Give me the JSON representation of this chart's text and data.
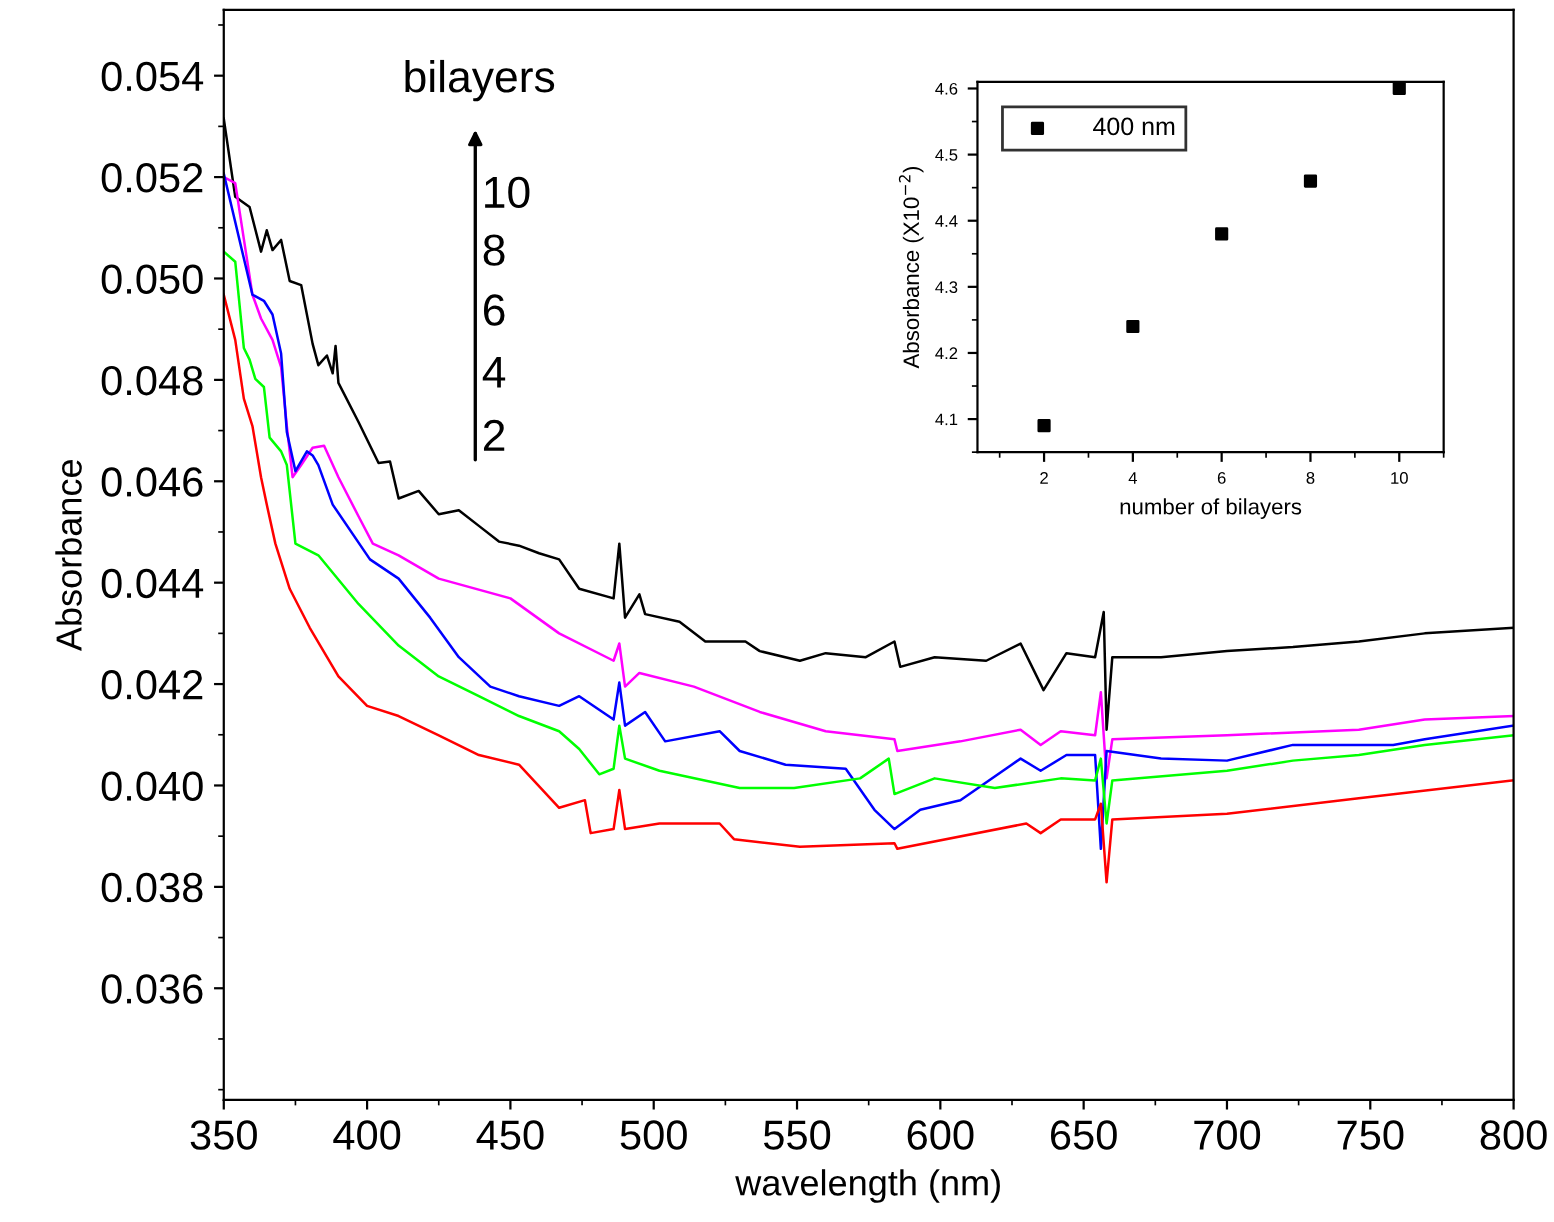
{
  "chart_data": [
    {
      "type": "line",
      "xlabel": "wavelength (nm)",
      "ylabel": "Absorbance",
      "xlim": [
        350,
        800
      ],
      "xticks": [
        350,
        400,
        450,
        500,
        550,
        600,
        650,
        700,
        750,
        800
      ],
      "ylim": [
        0.0338,
        0.0553
      ],
      "yticks": [
        {
          "value": 0.036,
          "label": "0.036"
        },
        {
          "value": 0.038,
          "label": "0.038"
        },
        {
          "value": 0.04,
          "label": "0.040"
        },
        {
          "value": 0.042,
          "label": "0.042"
        },
        {
          "value": 0.044,
          "label": "0.044"
        },
        {
          "value": 0.046,
          "label": "0.046"
        },
        {
          "value": 0.048,
          "label": "0.048"
        },
        {
          "value": 0.05,
          "label": "0.050"
        },
        {
          "value": 0.052,
          "label": "0.052"
        },
        {
          "value": 0.054,
          "label": "0.054"
        }
      ],
      "grid": false,
      "legend": false,
      "annotations": [
        "bilayers",
        "10",
        "8",
        "6",
        "4",
        "2"
      ],
      "series": [
        {
          "color": "#000000",
          "x": [
            350,
            354,
            359,
            363,
            365,
            367,
            370,
            373,
            377,
            381,
            383,
            386,
            388,
            389,
            390,
            397,
            404,
            408,
            411,
            418,
            425,
            432,
            439,
            446,
            453,
            460,
            467,
            474,
            486,
            488,
            490,
            495,
            497,
            509,
            518,
            532,
            537,
            551,
            560,
            574,
            584,
            586,
            598,
            616,
            628,
            636,
            644,
            654,
            657,
            658,
            660,
            677,
            700,
            723,
            746,
            769,
            800
          ],
          "values": [
            0.05315,
            0.05161,
            0.05141,
            0.05053,
            0.05095,
            0.05056,
            0.05076,
            0.04995,
            0.04987,
            0.04871,
            0.04829,
            0.04848,
            0.04813,
            0.04867,
            0.04794,
            0.04717,
            0.04636,
            0.04639,
            0.04566,
            0.04581,
            0.04535,
            0.04543,
            0.04512,
            0.04481,
            0.04473,
            0.04458,
            0.04446,
            0.04388,
            0.04369,
            0.04477,
            0.04331,
            0.04377,
            0.04338,
            0.04323,
            0.04284,
            0.04284,
            0.04265,
            0.04246,
            0.04261,
            0.04253,
            0.04284,
            0.04234,
            0.04253,
            0.04246,
            0.0428,
            0.04188,
            0.04261,
            0.04253,
            0.04342,
            0.0411,
            0.04253,
            0.04253,
            0.04265,
            0.04273,
            0.04284,
            0.043,
            0.04311
          ]
        },
        {
          "color": "#ff00ff",
          "x": [
            350,
            354,
            360,
            363,
            367,
            370,
            372,
            374,
            377,
            381,
            385,
            390,
            397,
            402,
            411,
            425,
            450,
            467,
            486,
            488,
            490,
            495,
            514,
            537,
            560,
            584,
            585,
            607,
            628,
            635,
            642,
            654,
            656,
            658,
            660,
            700,
            746,
            769,
            800
          ],
          "values": [
            0.052,
            0.05188,
            0.04968,
            0.04921,
            0.04879,
            0.04825,
            0.04709,
            0.04608,
            0.04632,
            0.04666,
            0.0467,
            0.04608,
            0.04531,
            0.04477,
            0.04454,
            0.04408,
            0.04369,
            0.043,
            0.04246,
            0.0428,
            0.04195,
            0.04222,
            0.04195,
            0.04145,
            0.04107,
            0.04091,
            0.04068,
            0.04087,
            0.0411,
            0.0408,
            0.04107,
            0.04099,
            0.04184,
            0.04014,
            0.04091,
            0.04099,
            0.0411,
            0.0413,
            0.04137
          ]
        },
        {
          "color": "#0000ff",
          "x": [
            350,
            360,
            364,
            367,
            370,
            372,
            375,
            379,
            381,
            383,
            388,
            401,
            411,
            422,
            432,
            443,
            453,
            467,
            474,
            486,
            488,
            490,
            497,
            504,
            523,
            530,
            546,
            567,
            577,
            584,
            593,
            607,
            628,
            635,
            644,
            654,
            656,
            658,
            677,
            700,
            723,
            758,
            769,
            800
          ],
          "values": [
            0.05207,
            0.04968,
            0.04956,
            0.04929,
            0.04852,
            0.04697,
            0.0462,
            0.04659,
            0.04651,
            0.04632,
            0.04554,
            0.04446,
            0.04408,
            0.04331,
            0.04253,
            0.04195,
            0.04176,
            0.04157,
            0.04176,
            0.0413,
            0.04203,
            0.04118,
            0.04145,
            0.04087,
            0.04107,
            0.04068,
            0.04041,
            0.04033,
            0.03952,
            0.03914,
            0.03952,
            0.03971,
            0.04053,
            0.04029,
            0.0406,
            0.0406,
            0.03875,
            0.04068,
            0.04053,
            0.04049,
            0.0408,
            0.0408,
            0.04091,
            0.04118
          ]
        },
        {
          "color": "#00ff00",
          "x": [
            350,
            354,
            357,
            359,
            361,
            364,
            366,
            370,
            372,
            375,
            383,
            397,
            411,
            425,
            439,
            453,
            467,
            474,
            481,
            486,
            488,
            490,
            502,
            530,
            549,
            572,
            582,
            584,
            598,
            619,
            642,
            654,
            656,
            658,
            660,
            700,
            723,
            746,
            769,
            800
          ],
          "values": [
            0.05053,
            0.05033,
            0.04863,
            0.0484,
            0.04802,
            0.04786,
            0.04686,
            0.04659,
            0.04632,
            0.04477,
            0.04454,
            0.04358,
            0.04276,
            0.04215,
            0.04176,
            0.04137,
            0.04107,
            0.04072,
            0.04022,
            0.04033,
            0.04118,
            0.04053,
            0.04029,
            0.03995,
            0.03995,
            0.04014,
            0.04053,
            0.03983,
            0.04014,
            0.03995,
            0.04014,
            0.0401,
            0.04053,
            0.03925,
            0.0401,
            0.04029,
            0.04049,
            0.0406,
            0.0408,
            0.04099
          ]
        },
        {
          "color": "#ff0000",
          "x": [
            350,
            354,
            357,
            360,
            363,
            365,
            368,
            373,
            380,
            390,
            400,
            411,
            425,
            439,
            453,
            467,
            476,
            478,
            486,
            488,
            490,
            502,
            523,
            528,
            551,
            584,
            585,
            630,
            635,
            642,
            654,
            656,
            658,
            660,
            700,
            746,
            800
          ],
          "values": [
            0.04968,
            0.04879,
            0.04763,
            0.04709,
            0.04608,
            0.04554,
            0.04477,
            0.04388,
            0.04311,
            0.04215,
            0.04157,
            0.04137,
            0.04099,
            0.0406,
            0.04041,
            0.03956,
            0.03971,
            0.03906,
            0.03914,
            0.03991,
            0.03914,
            0.03925,
            0.03925,
            0.03894,
            0.03879,
            0.03886,
            0.03875,
            0.03925,
            0.03906,
            0.03933,
            0.03933,
            0.03964,
            0.03809,
            0.03933,
            0.03944,
            0.03975,
            0.0401
          ]
        }
      ]
    },
    {
      "type": "scatter",
      "xlabel": "number of bilayers",
      "ylabel": "Absorbance (X10$^{−2}$)",
      "x": [
        2,
        4,
        6,
        8,
        10
      ],
      "xlim": [
        0.5,
        11
      ],
      "xticks": [
        2,
        4,
        6,
        8,
        10
      ],
      "ylim": [
        4.05,
        4.61
      ],
      "yticks": [
        4.1,
        4.2,
        4.3,
        4.4,
        4.5,
        4.6
      ],
      "grid": false,
      "legend": "top left",
      "marker": "square",
      "series": [
        {
          "name": "400 nm",
          "color": "#000000",
          "values": [
            4.09,
            4.24,
            4.38,
            4.46,
            4.6
          ]
        }
      ]
    }
  ]
}
